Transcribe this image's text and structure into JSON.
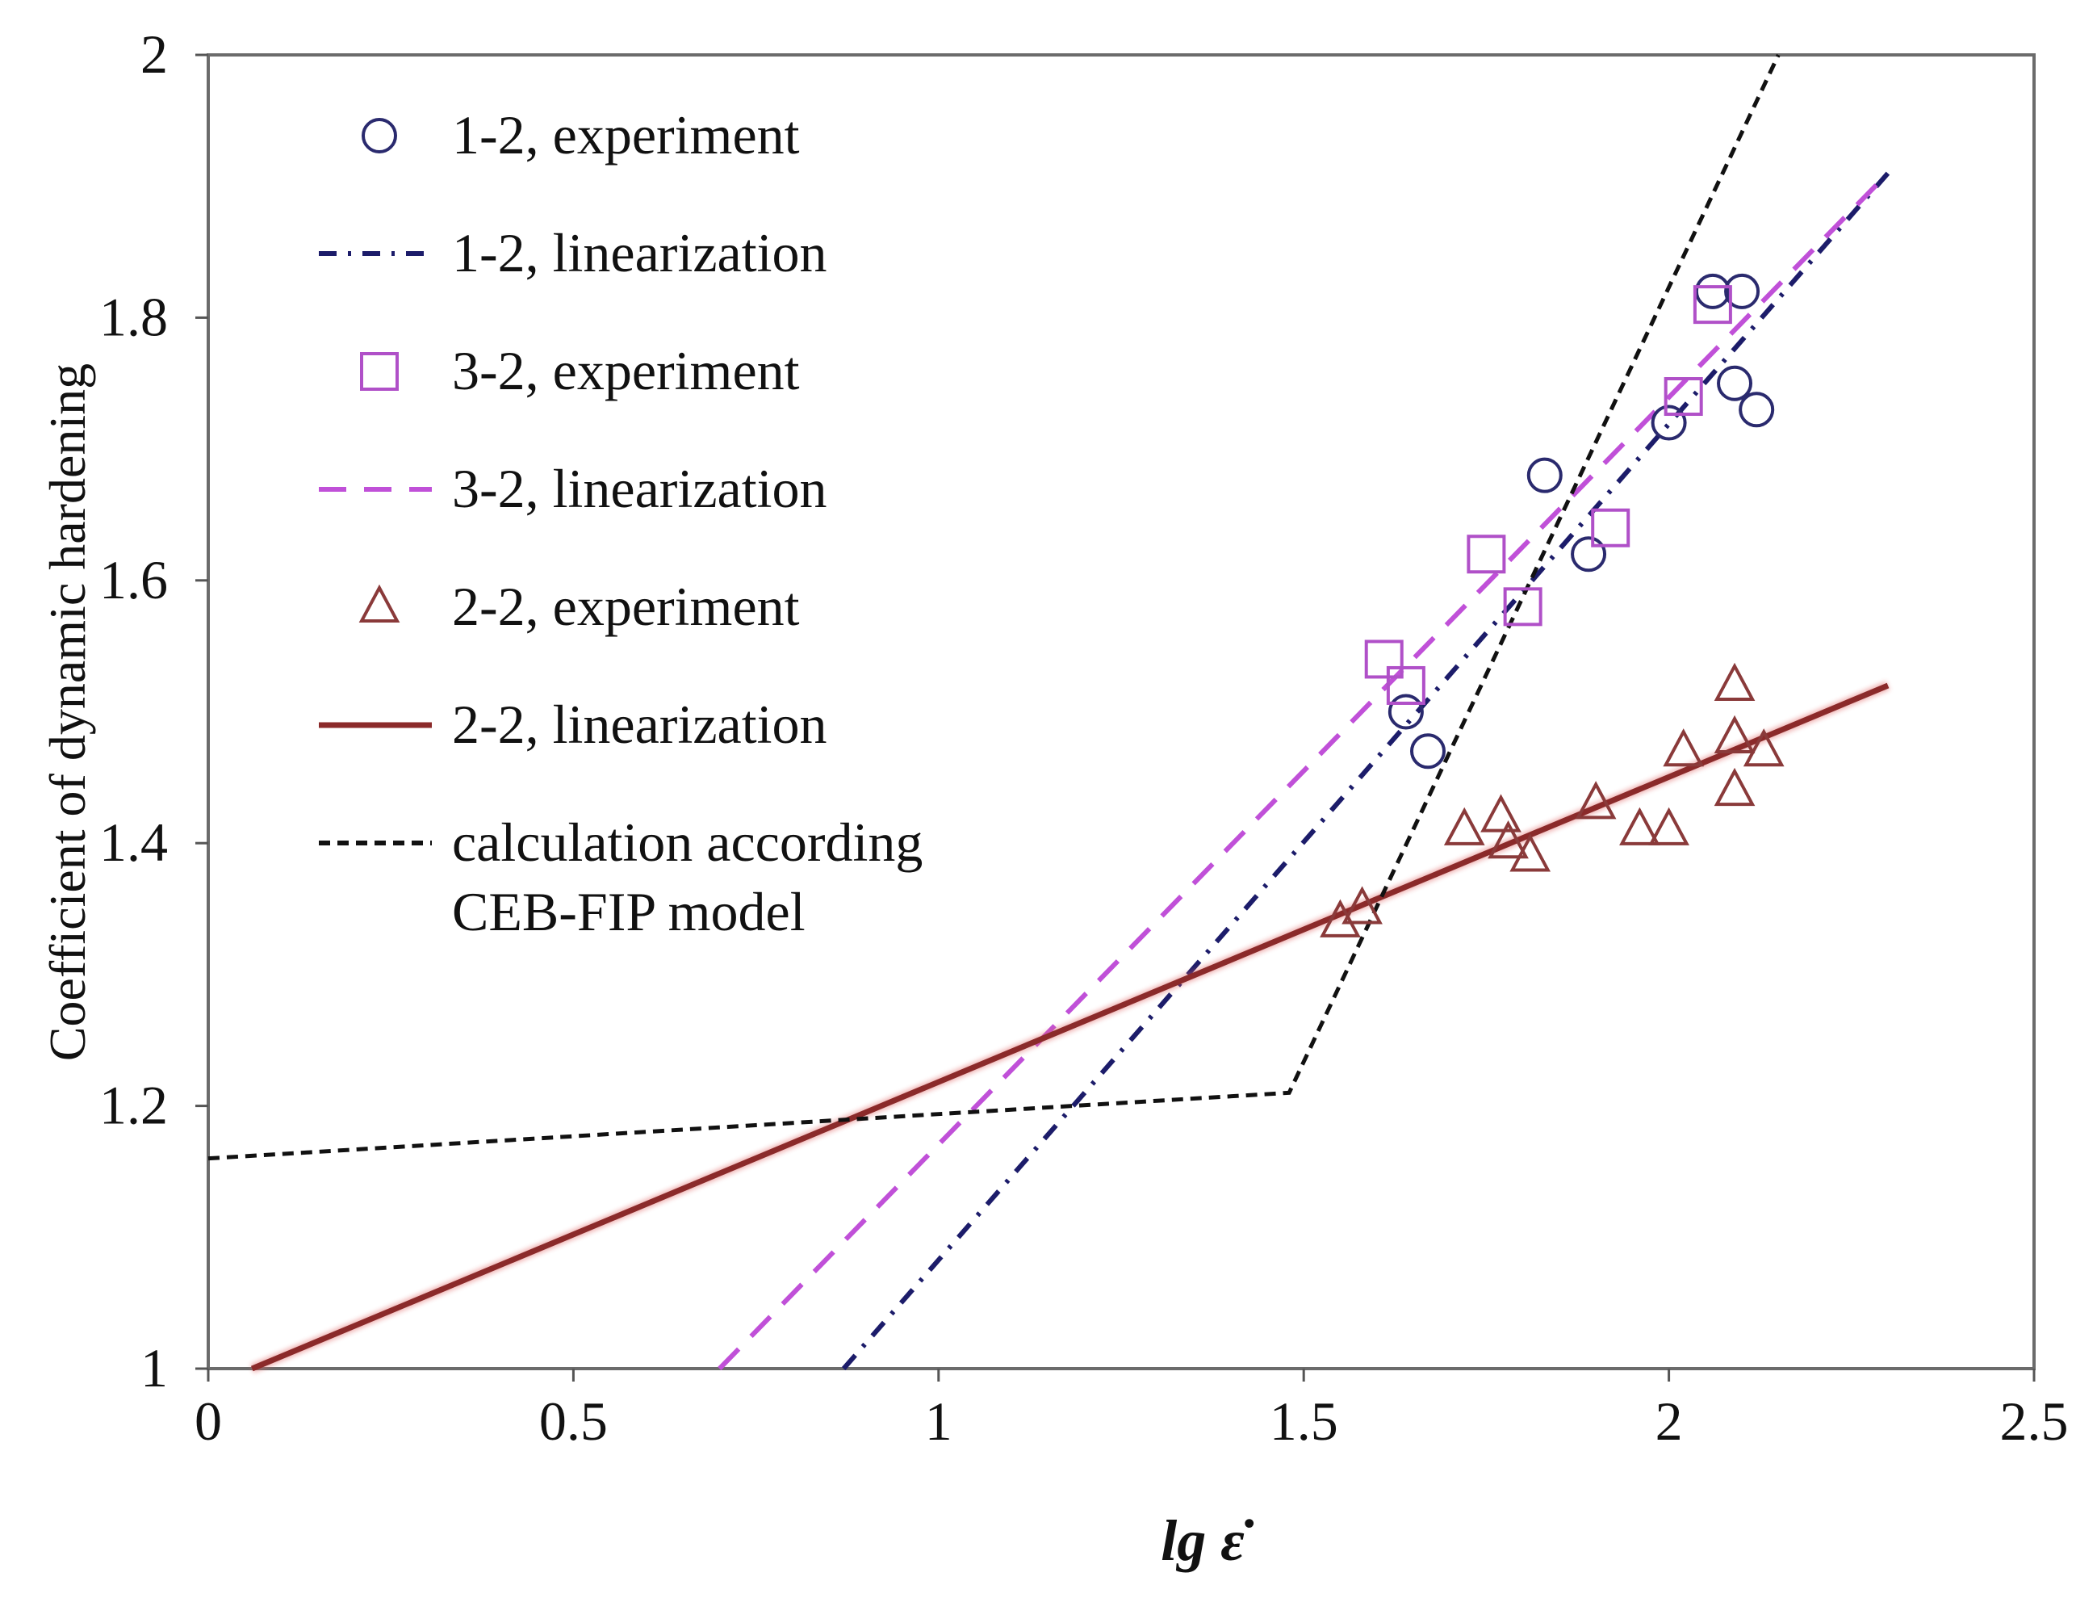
{
  "chart_data": {
    "type": "scatter",
    "title": "",
    "xlabel": "lg ε̇",
    "ylabel": "Coefficient of dynamic hardening",
    "xlim": [
      0,
      2.5
    ],
    "ylim": [
      1,
      2
    ],
    "xticks": [
      "0",
      "0.5",
      "1",
      "1.5",
      "2",
      "2.5"
    ],
    "xtick_values": [
      0,
      0.5,
      1,
      1.5,
      2,
      2.5
    ],
    "yticks": [
      "1",
      "1.2",
      "1.4",
      "1.6",
      "1.8",
      "2"
    ],
    "ytick_values": [
      1,
      1.2,
      1.4,
      1.6,
      1.8,
      2
    ],
    "grid": false,
    "legend_position": "top-left",
    "series": [
      {
        "name": "1-2, experiment",
        "kind": "scatter",
        "marker": "circle",
        "color": "#2a2a6e",
        "points": [
          [
            1.64,
            1.5
          ],
          [
            1.67,
            1.47
          ],
          [
            1.83,
            1.68
          ],
          [
            1.89,
            1.62
          ],
          [
            2.0,
            1.72
          ],
          [
            2.06,
            1.82
          ],
          [
            2.1,
            1.82
          ],
          [
            2.09,
            1.75
          ],
          [
            2.12,
            1.73
          ]
        ]
      },
      {
        "name": "1-2, linearization",
        "kind": "line",
        "style": "dashdot",
        "color": "#1c1c6a",
        "points": [
          [
            0.87,
            1.0
          ],
          [
            2.3,
            1.91
          ]
        ]
      },
      {
        "name": "3-2, experiment",
        "kind": "scatter",
        "marker": "square",
        "color": "#b050c8",
        "points": [
          [
            1.61,
            1.54
          ],
          [
            1.64,
            1.52
          ],
          [
            1.75,
            1.62
          ],
          [
            1.8,
            1.58
          ],
          [
            1.92,
            1.64
          ],
          [
            2.02,
            1.74
          ],
          [
            2.06,
            1.81
          ]
        ]
      },
      {
        "name": "3-2, linearization",
        "kind": "line",
        "style": "dashed",
        "color": "#c050d8",
        "points": [
          [
            0.7,
            1.0
          ],
          [
            2.3,
            1.91
          ]
        ]
      },
      {
        "name": "2-2, experiment",
        "kind": "scatter",
        "marker": "triangle",
        "color": "#8a3a3a",
        "points": [
          [
            1.55,
            1.34
          ],
          [
            1.58,
            1.35
          ],
          [
            1.72,
            1.41
          ],
          [
            1.77,
            1.42
          ],
          [
            1.78,
            1.4
          ],
          [
            1.81,
            1.39
          ],
          [
            1.9,
            1.43
          ],
          [
            1.96,
            1.41
          ],
          [
            2.0,
            1.41
          ],
          [
            2.02,
            1.47
          ],
          [
            2.09,
            1.52
          ],
          [
            2.09,
            1.48
          ],
          [
            2.09,
            1.44
          ],
          [
            2.13,
            1.47
          ]
        ]
      },
      {
        "name": "2-2, linearization",
        "kind": "line",
        "style": "solid",
        "color": "#8b2a2a",
        "points": [
          [
            0.06,
            1.0
          ],
          [
            2.3,
            1.52
          ]
        ]
      },
      {
        "name": "calculation according CEB-FIP model",
        "kind": "line",
        "style": "dotted",
        "color": "#111111",
        "points": [
          [
            0.0,
            1.16
          ],
          [
            1.48,
            1.21
          ],
          [
            2.15,
            2.0
          ]
        ]
      }
    ],
    "legend": [
      {
        "label": "1-2, experiment",
        "series": 0
      },
      {
        "label": "1-2, linearization",
        "series": 1
      },
      {
        "label": "3-2, experiment",
        "series": 2
      },
      {
        "label": "3-2, linearization",
        "series": 3
      },
      {
        "label": "2-2, experiment",
        "series": 4
      },
      {
        "label": "2-2, linearization",
        "series": 5
      },
      {
        "label": "calculation according",
        "label2": "CEB-FIP model",
        "series": 6
      }
    ]
  }
}
